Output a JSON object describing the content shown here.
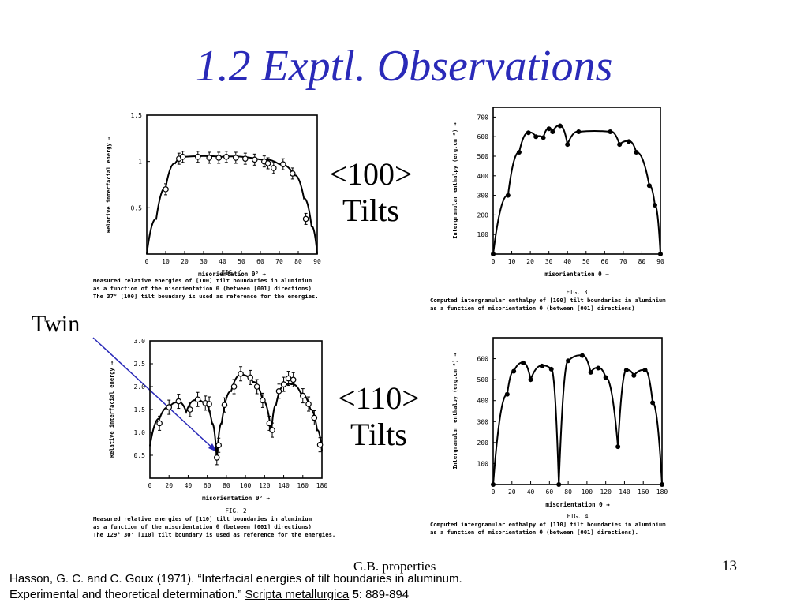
{
  "slide": {
    "title": "1.2  Exptl. Observations",
    "label_100_line1": "<100>",
    "label_100_line2": "Tilts",
    "label_110_line1": "<110>",
    "label_110_line2": "Tilts",
    "twin": "Twin",
    "footer": "G.B. properties",
    "page": "13",
    "ref_line1": "Hasson, G. C. and C. Goux (1971). “Interfacial energies of tilt boundaries in aluminum.",
    "ref_line2a": "Experimental and theoretical determination.” ",
    "ref_journal": "Scripta metallurgica",
    "ref_vol": "5",
    "ref_pages": ": 889-894"
  },
  "chart_data": [
    {
      "id": "fig1",
      "type": "scatter",
      "xlabel": "misorientation θ° →",
      "ylabel": "Relative interfacial energy →",
      "xlim": [
        0,
        90
      ],
      "ylim": [
        0,
        1.5
      ],
      "xticks": [
        "0",
        "10",
        "20",
        "30",
        "40",
        "50",
        "60",
        "70",
        "80",
        "90"
      ],
      "yticks": [
        "0.5",
        "1",
        "1.5"
      ],
      "fig_label": "FIG. 1",
      "caption": [
        "Measured relative energies of [100] tilt boundaries in aluminium",
        "as a function of the misorientation θ (between [001] directions)",
        "The 37° [100] tilt boundary is used as reference for the energies."
      ],
      "points": [
        [
          10,
          0.7
        ],
        [
          17,
          1.03
        ],
        [
          19,
          1.05
        ],
        [
          27,
          1.05
        ],
        [
          33,
          1.04
        ],
        [
          38,
          1.04
        ],
        [
          42,
          1.05
        ],
        [
          47,
          1.04
        ],
        [
          52,
          1.03
        ],
        [
          57,
          1.02
        ],
        [
          62,
          1.0
        ],
        [
          64,
          0.98
        ],
        [
          67,
          0.93
        ],
        [
          72,
          0.97
        ],
        [
          77,
          0.87
        ],
        [
          84,
          0.38
        ]
      ],
      "curve": [
        [
          0,
          0
        ],
        [
          5,
          0.38
        ],
        [
          10,
          0.72
        ],
        [
          15,
          0.98
        ],
        [
          20,
          1.05
        ],
        [
          40,
          1.05
        ],
        [
          60,
          1.02
        ],
        [
          70,
          0.97
        ],
        [
          78,
          0.85
        ],
        [
          83,
          0.6
        ],
        [
          87,
          0.3
        ],
        [
          90,
          0
        ]
      ]
    },
    {
      "id": "fig3",
      "type": "scatter",
      "xlabel": "misorientation θ →",
      "ylabel": "Intergranular enthalpy (erg.cm⁻²) →",
      "xlim": [
        0,
        90
      ],
      "ylim": [
        0,
        750
      ],
      "xticks": [
        "0",
        "10",
        "20",
        "30",
        "40",
        "50",
        "60",
        "70",
        "80",
        "90"
      ],
      "yticks": [
        "100",
        "200",
        "300",
        "400",
        "500",
        "600",
        "700"
      ],
      "fig_label": "FIG. 3",
      "caption": [
        "Computed intergranular enthalpy of [100] tilt boundaries in aluminium",
        "as a function of misorientation θ (between [001] directions)"
      ],
      "points": [
        [
          0,
          0
        ],
        [
          8,
          300
        ],
        [
          14,
          520
        ],
        [
          19,
          620
        ],
        [
          23,
          600
        ],
        [
          27,
          595
        ],
        [
          30,
          640
        ],
        [
          32,
          625
        ],
        [
          36,
          655
        ],
        [
          40,
          560
        ],
        [
          46,
          625
        ],
        [
          63,
          625
        ],
        [
          68,
          560
        ],
        [
          73,
          575
        ],
        [
          77,
          520
        ],
        [
          84,
          350
        ],
        [
          87,
          250
        ],
        [
          90,
          0
        ]
      ]
    },
    {
      "id": "fig2",
      "type": "scatter",
      "xlabel": "misorientation θ° →",
      "ylabel": "Relative interfacial energy →",
      "xlim": [
        0,
        180
      ],
      "ylim": [
        0,
        3.0
      ],
      "xticks": [
        "0",
        "20",
        "40",
        "60",
        "80",
        "100",
        "120",
        "140",
        "160",
        "180"
      ],
      "yticks": [
        "0.5",
        "1.0",
        "1.5",
        "2.0",
        "2.5",
        "3.0"
      ],
      "fig_label": "FIG. 2",
      "caption": [
        "Measured relative energies of [110] tilt boundaries in aluminium",
        "as a function of the misorientation θ (between [001] directions)",
        "The 129° 30' [110] tilt boundary is used as reference for the energies."
      ],
      "points": [
        [
          10,
          1.2
        ],
        [
          20,
          1.55
        ],
        [
          30,
          1.68
        ],
        [
          42,
          1.5
        ],
        [
          50,
          1.72
        ],
        [
          58,
          1.64
        ],
        [
          62,
          1.62
        ],
        [
          70,
          0.45
        ],
        [
          72,
          0.72
        ],
        [
          78,
          1.6
        ],
        [
          88,
          2.0
        ],
        [
          95,
          2.28
        ],
        [
          105,
          2.2
        ],
        [
          112,
          2.0
        ],
        [
          118,
          1.7
        ],
        [
          125,
          1.2
        ],
        [
          128,
          1.05
        ],
        [
          135,
          1.9
        ],
        [
          140,
          2.05
        ],
        [
          145,
          2.18
        ],
        [
          150,
          2.15
        ],
        [
          160,
          1.8
        ],
        [
          166,
          1.62
        ],
        [
          172,
          1.32
        ],
        [
          178,
          0.73
        ]
      ],
      "curve": [
        [
          0,
          0.7
        ],
        [
          10,
          1.3
        ],
        [
          20,
          1.55
        ],
        [
          30,
          1.65
        ],
        [
          38,
          1.45
        ],
        [
          48,
          1.7
        ],
        [
          58,
          1.6
        ],
        [
          65,
          1.2
        ],
        [
          70,
          0.4
        ],
        [
          75,
          1.2
        ],
        [
          85,
          1.9
        ],
        [
          95,
          2.25
        ],
        [
          108,
          2.1
        ],
        [
          118,
          1.7
        ],
        [
          127,
          1.0
        ],
        [
          132,
          1.6
        ],
        [
          140,
          2.0
        ],
        [
          148,
          2.05
        ],
        [
          158,
          1.85
        ],
        [
          168,
          1.5
        ],
        [
          175,
          1.05
        ],
        [
          180,
          0.6
        ]
      ]
    },
    {
      "id": "fig4",
      "type": "scatter",
      "xlabel": "misorientation θ →",
      "ylabel": "Intergranular enthalpy (erg.cm⁻²) →",
      "xlim": [
        0,
        180
      ],
      "ylim": [
        0,
        700
      ],
      "xticks": [
        "0",
        "20",
        "40",
        "60",
        "80",
        "100",
        "120",
        "140",
        "160",
        "180"
      ],
      "yticks": [
        "100",
        "200",
        "300",
        "400",
        "500",
        "600"
      ],
      "fig_label": "FIG. 4",
      "caption": [
        "Computed intergranular enthalpy of [110] tilt boundaries in aluminium",
        "as a function of misorientation θ (between [001] directions)."
      ],
      "points": [
        [
          0,
          0
        ],
        [
          15,
          430
        ],
        [
          22,
          540
        ],
        [
          32,
          580
        ],
        [
          40,
          500
        ],
        [
          52,
          565
        ],
        [
          62,
          550
        ],
        [
          70,
          0
        ],
        [
          80,
          590
        ],
        [
          95,
          615
        ],
        [
          104,
          535
        ],
        [
          112,
          555
        ],
        [
          120,
          510
        ],
        [
          133,
          180
        ],
        [
          142,
          545
        ],
        [
          150,
          520
        ],
        [
          162,
          545
        ],
        [
          170,
          390
        ],
        [
          180,
          0
        ]
      ]
    }
  ]
}
